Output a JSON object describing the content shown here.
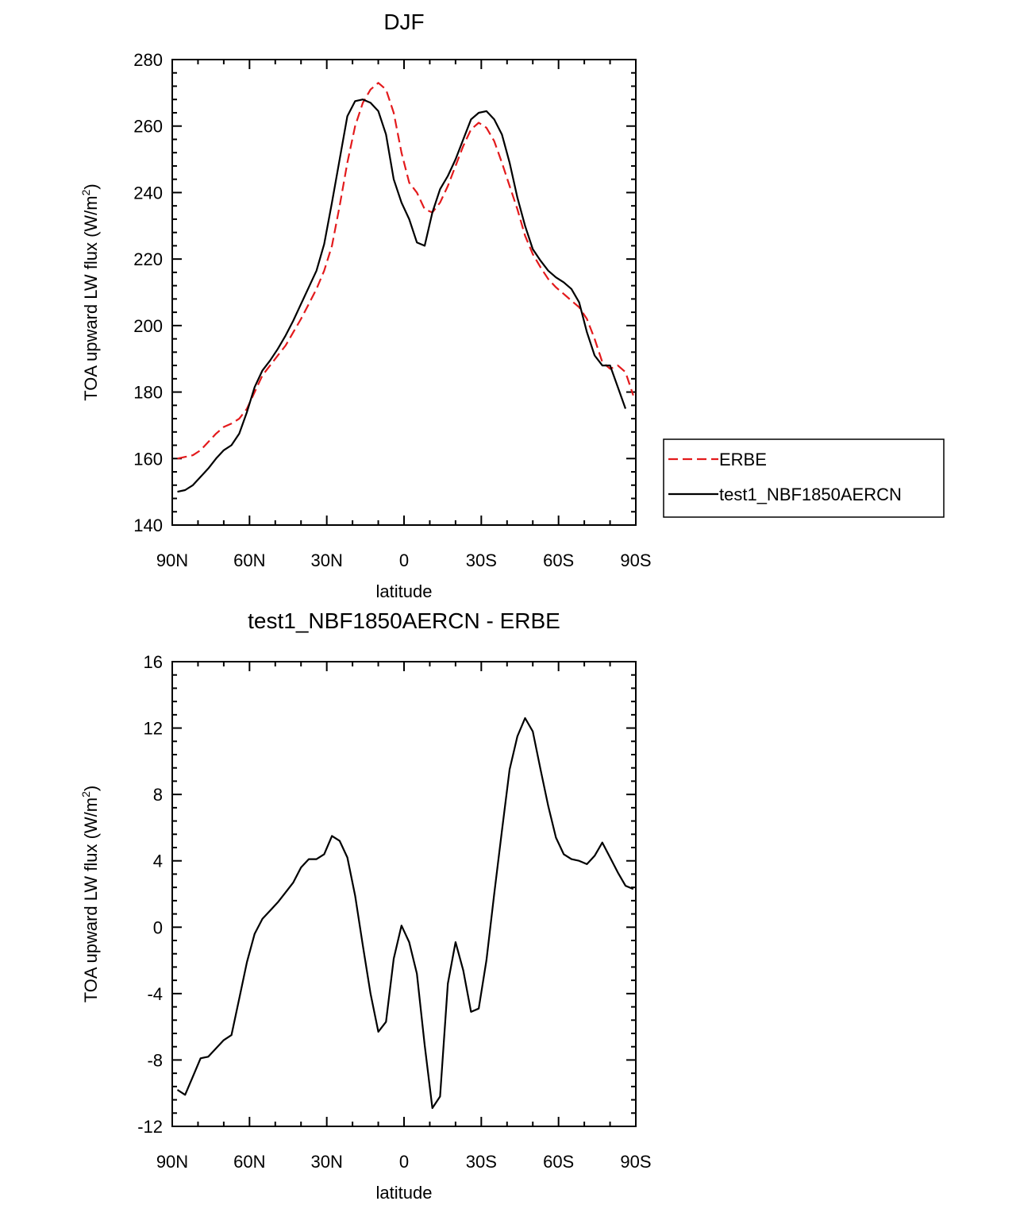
{
  "chart_data": [
    {
      "type": "line",
      "title": "DJF",
      "xlabel": "latitude",
      "ylabel": "TOA upward LW flux (W/m",
      "ylabel_superscript": "2",
      "ylabel_suffix": ")",
      "xlim": [
        -90,
        90
      ],
      "ylim": [
        140,
        280
      ],
      "xticks": [
        -90,
        -60,
        -30,
        0,
        30,
        60,
        90
      ],
      "xtick_labels": [
        "90N",
        "60N",
        "30N",
        "0",
        "30S",
        "60S",
        "90S"
      ],
      "yticks": [
        140,
        160,
        180,
        200,
        220,
        240,
        260,
        280
      ],
      "ytick_labels": [
        "140",
        "160",
        "180",
        "200",
        "220",
        "240",
        "260",
        "280"
      ],
      "legend_position": "right",
      "series": [
        {
          "name": "ERBE",
          "color": "#e31a1c",
          "style": "dashed",
          "x": [
            -88,
            -85,
            -82,
            -79,
            -76,
            -73,
            -70,
            -67,
            -64,
            -61,
            -58,
            -55,
            -52,
            -49,
            -46,
            -43,
            -40,
            -37,
            -34,
            -31,
            -28,
            -25,
            -22,
            -19,
            -16,
            -13,
            -10,
            -7,
            -4,
            -1,
            2,
            5,
            8,
            11,
            14,
            17,
            20,
            23,
            26,
            29,
            32,
            35,
            38,
            41,
            44,
            47,
            50,
            53,
            56,
            59,
            62,
            65,
            68,
            71,
            74,
            77,
            80,
            83,
            86,
            89
          ],
          "y": [
            160,
            160.5,
            161,
            162.5,
            165,
            167.5,
            169.5,
            170.5,
            172,
            175,
            180,
            185,
            188,
            191,
            194,
            198,
            202,
            206.5,
            211,
            216.5,
            224,
            236,
            249,
            260,
            267,
            271,
            273,
            271,
            264,
            252,
            243,
            240,
            235,
            234,
            237,
            242,
            248,
            254,
            259,
            261,
            259.5,
            255.5,
            249,
            242,
            235,
            227,
            221.5,
            217.5,
            214,
            211.5,
            209.5,
            207.5,
            205.5,
            202,
            196,
            189,
            187,
            188,
            186,
            179
          ]
        },
        {
          "name": "test1_NBF1850AERCN",
          "color": "#000000",
          "style": "solid",
          "x": [
            -88,
            -85,
            -82,
            -79,
            -76,
            -73,
            -70,
            -67,
            -64,
            -61,
            -58,
            -55,
            -52,
            -49,
            -46,
            -43,
            -40,
            -37,
            -34,
            -31,
            -28,
            -25,
            -22,
            -19,
            -16,
            -13,
            -10,
            -7,
            -4,
            -1,
            2,
            5,
            8,
            11,
            14,
            17,
            20,
            23,
            26,
            29,
            32,
            35,
            38,
            41,
            44,
            47,
            50,
            53,
            56,
            59,
            62,
            65,
            68,
            71,
            74,
            77,
            80,
            83,
            86,
            89
          ],
          "y": [
            150,
            150.5,
            152,
            154.5,
            157,
            160,
            162.5,
            164,
            167.5,
            174,
            181.5,
            186.5,
            189.5,
            193,
            197,
            201.5,
            206.5,
            211.5,
            216.5,
            224.5,
            237,
            250,
            263,
            267.5,
            268,
            267,
            264.5,
            257.5,
            244,
            237,
            232,
            225,
            224,
            234,
            241,
            245,
            250,
            256,
            262,
            264,
            264.5,
            262,
            257.5,
            249,
            238.5,
            230,
            223,
            219.5,
            216.5,
            214.5,
            213,
            211,
            207,
            198,
            191,
            188,
            188,
            181.5,
            175,
            null
          ]
        }
      ]
    },
    {
      "type": "line",
      "title": "test1_NBF1850AERCN - ERBE",
      "xlabel": "latitude",
      "ylabel": "TOA upward LW flux (W/m",
      "ylabel_superscript": "2",
      "ylabel_suffix": ")",
      "xlim": [
        -90,
        90
      ],
      "ylim": [
        -12,
        16
      ],
      "xticks": [
        -90,
        -60,
        -30,
        0,
        30,
        60,
        90
      ],
      "xtick_labels": [
        "90N",
        "60N",
        "30N",
        "0",
        "30S",
        "60S",
        "90S"
      ],
      "yticks": [
        -12,
        -8,
        -4,
        0,
        4,
        8,
        12,
        16
      ],
      "ytick_labels": [
        "-12",
        "-8",
        "-4",
        "0",
        "4",
        "8",
        "12",
        "16"
      ],
      "series": [
        {
          "name": "test1_NBF1850AERCN - ERBE",
          "color": "#000000",
          "style": "solid",
          "x": [
            -88,
            -85,
            -82,
            -79,
            -76,
            -73,
            -70,
            -67,
            -64,
            -61,
            -58,
            -55,
            -52,
            -49,
            -46,
            -43,
            -40,
            -37,
            -34,
            -31,
            -28,
            -25,
            -22,
            -19,
            -16,
            -13,
            -10,
            -7,
            -4,
            -1,
            2,
            5,
            8,
            11,
            14,
            17,
            20,
            23,
            26,
            29,
            32,
            35,
            38,
            41,
            44,
            47,
            50,
            53,
            56,
            59,
            62,
            65,
            68,
            71,
            74,
            77,
            80,
            83,
            86,
            89
          ],
          "y": [
            -9.8,
            -10.1,
            -9,
            -7.9,
            -7.8,
            -7.3,
            -6.8,
            -6.5,
            -4.3,
            -2.1,
            -0.4,
            0.5,
            1,
            1.5,
            2.1,
            2.7,
            3.6,
            4.1,
            4.1,
            4.4,
            5.5,
            5.2,
            4.2,
            1.9,
            -1.1,
            -4,
            -6.3,
            -5.7,
            -1.9,
            0.1,
            -0.9,
            -2.8,
            -7.1,
            -10.9,
            -10.2,
            -3.4,
            -0.9,
            -2.6,
            -5.1,
            -4.9,
            -2,
            2,
            5.8,
            9.5,
            11.5,
            12.6,
            11.8,
            9.5,
            7.3,
            5.4,
            4.4,
            4.1,
            4,
            3.8,
            4.3,
            5.1,
            4.2,
            3.3,
            2.5,
            2.3
          ]
        }
      ]
    }
  ]
}
